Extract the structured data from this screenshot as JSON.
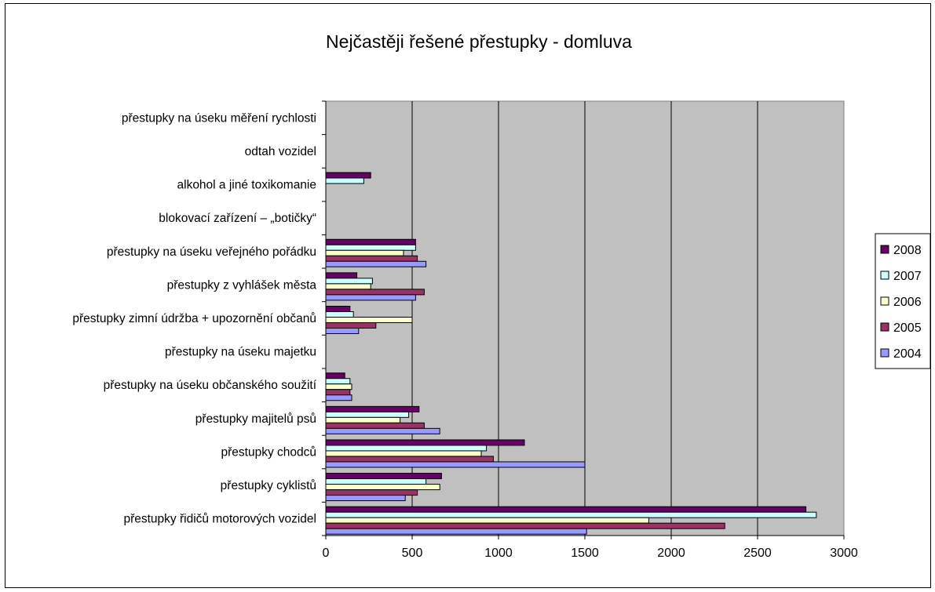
{
  "chart_data": {
    "type": "bar",
    "orientation": "horizontal",
    "title": "Nejčastěji řešené přestupky - domluva",
    "xlabel": "",
    "ylabel": "",
    "xlim": [
      0,
      3000
    ],
    "xticks": [
      "0",
      "500",
      "1000",
      "1500",
      "2000",
      "2500",
      "3000"
    ],
    "grid": true,
    "legend_position": "right",
    "categories": [
      "přestupky na úseku měření rychlosti",
      "odtah vozidel",
      "alkohol a jiné toxikomanie",
      "blokovací zařízení – „botičky“",
      "přestupky na úseku veřejného pořádku",
      "přestupky z vyhlášek města",
      "přestupky zimní údržba + upozornění občanů",
      "přestupky na úseku majetku",
      "přestupky na úseku občanského soužití",
      "přestupky majitelů psů",
      "přestupky chodců",
      "přestupky cyklistů",
      "přestupky řidičů motorových vozidel"
    ],
    "series": [
      {
        "name": "2008",
        "color": "#660066",
        "values": [
          0,
          0,
          260,
          0,
          520,
          180,
          140,
          0,
          110,
          540,
          1150,
          670,
          2780
        ]
      },
      {
        "name": "2007",
        "color": "#CCFFFF",
        "values": [
          0,
          0,
          220,
          0,
          520,
          270,
          160,
          0,
          140,
          480,
          930,
          580,
          2840
        ]
      },
      {
        "name": "2006",
        "color": "#FFFFCC",
        "values": [
          0,
          0,
          0,
          0,
          450,
          260,
          500,
          0,
          150,
          430,
          900,
          660,
          1870
        ]
      },
      {
        "name": "2005",
        "color": "#993366",
        "values": [
          0,
          0,
          0,
          0,
          530,
          570,
          290,
          0,
          140,
          570,
          970,
          530,
          2310
        ]
      },
      {
        "name": "2004",
        "color": "#9999FF",
        "values": [
          0,
          0,
          0,
          0,
          580,
          520,
          190,
          0,
          150,
          660,
          1500,
          460,
          1510
        ]
      }
    ],
    "legend_order": [
      "2008",
      "2007",
      "2006",
      "2005",
      "2004"
    ],
    "plot_background": "#C0C0C0"
  }
}
